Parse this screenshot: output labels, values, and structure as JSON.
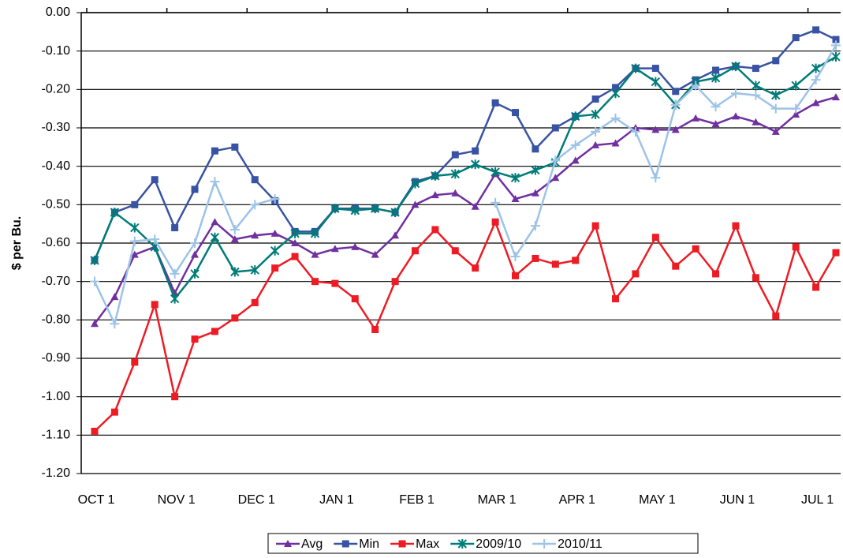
{
  "chart_data": {
    "type": "line",
    "ylabel": "$ per Bu.",
    "categories": [
      "OCT 1",
      null,
      null,
      null,
      "NOV 1",
      null,
      null,
      null,
      "DEC 1",
      null,
      null,
      null,
      "JAN 1",
      null,
      null,
      null,
      "FEB 1",
      null,
      null,
      null,
      "MAR 1",
      null,
      null,
      null,
      "APR 1",
      null,
      null,
      null,
      "MAY 1",
      null,
      null,
      null,
      "JUN 1",
      null,
      null,
      null,
      "JUL 1",
      null
    ],
    "ylim": [
      -1.2,
      0
    ],
    "yticks": [
      {
        "value": 0,
        "label": "0.00"
      },
      {
        "value": -0.1,
        "label": "-0.10"
      },
      {
        "value": -0.2,
        "label": "-0.20"
      },
      {
        "value": -0.3,
        "label": "-0.30"
      },
      {
        "value": -0.4,
        "label": "-0.40"
      },
      {
        "value": -0.5,
        "label": "-0.50"
      },
      {
        "value": -0.6,
        "label": "-0.60"
      },
      {
        "value": -0.7,
        "label": "-0.70"
      },
      {
        "value": -0.8,
        "label": "-0.80"
      },
      {
        "value": -0.9,
        "label": "-0.90"
      },
      {
        "value": -1.0,
        "label": "-1.00"
      },
      {
        "value": -1.1,
        "label": "-1.10"
      },
      {
        "value": -1.2,
        "label": "-1.20"
      }
    ],
    "grid": true,
    "legend": "bottom",
    "series": [
      {
        "name": "Avg",
        "color": "#7030a0",
        "marker": "triangle",
        "values": [
          -0.81,
          -0.74,
          -0.63,
          -0.61,
          -0.73,
          -0.63,
          -0.545,
          -0.59,
          -0.58,
          -0.575,
          -0.6,
          -0.63,
          -0.615,
          -0.61,
          -0.63,
          -0.58,
          -0.5,
          -0.475,
          -0.47,
          -0.505,
          -0.42,
          -0.485,
          -0.47,
          -0.43,
          -0.385,
          -0.345,
          -0.34,
          -0.3,
          -0.305,
          -0.305,
          -0.275,
          -0.29,
          -0.27,
          -0.285,
          -0.31,
          -0.265,
          -0.235,
          -0.22
        ]
      },
      {
        "name": "Min",
        "color": "#3953a4",
        "marker": "square",
        "values": [
          -0.645,
          -0.52,
          -0.5,
          -0.435,
          -0.56,
          -0.46,
          -0.36,
          -0.35,
          -0.435,
          -0.49,
          -0.57,
          -0.57,
          -0.51,
          -0.51,
          -0.51,
          -0.52,
          -0.44,
          -0.425,
          -0.37,
          -0.36,
          -0.235,
          -0.26,
          -0.355,
          -0.3,
          -0.27,
          -0.225,
          -0.195,
          -0.145,
          -0.145,
          -0.205,
          -0.175,
          -0.15,
          -0.14,
          -0.145,
          -0.125,
          -0.065,
          -0.045,
          -0.07
        ]
      },
      {
        "name": "Max",
        "color": "#ed1c24",
        "marker": "square",
        "values": [
          -1.09,
          -1.04,
          -0.91,
          -0.76,
          -1.0,
          -0.85,
          -0.83,
          -0.795,
          -0.755,
          -0.665,
          -0.635,
          -0.7,
          -0.705,
          -0.745,
          -0.825,
          -0.7,
          -0.62,
          -0.565,
          -0.62,
          -0.665,
          -0.545,
          -0.685,
          -0.64,
          -0.655,
          -0.645,
          -0.555,
          -0.745,
          -0.68,
          -0.585,
          -0.66,
          -0.615,
          -0.68,
          -0.555,
          -0.69,
          -0.79,
          -0.61,
          -0.715,
          -0.625
        ]
      },
      {
        "name": "2009/10",
        "color": "#007c78",
        "marker": "star",
        "values": [
          -0.645,
          -0.52,
          -0.56,
          -0.61,
          -0.745,
          -0.68,
          -0.585,
          -0.675,
          -0.67,
          -0.62,
          -0.575,
          -0.575,
          -0.51,
          -0.515,
          -0.51,
          -0.52,
          -0.445,
          -0.425,
          -0.42,
          -0.395,
          -0.415,
          -0.43,
          -0.41,
          -0.39,
          -0.27,
          -0.265,
          -0.21,
          -0.145,
          -0.18,
          -0.24,
          -0.18,
          -0.17,
          -0.14,
          -0.19,
          -0.215,
          -0.19,
          -0.145,
          -0.115
        ]
      },
      {
        "name": "2010/11",
        "color": "#9dc3e6",
        "marker": "plus",
        "values": [
          -0.7,
          -0.81,
          -0.595,
          -0.59,
          -0.68,
          -0.6,
          -0.44,
          -0.565,
          -0.5,
          -0.485,
          null,
          null,
          null,
          null,
          null,
          null,
          null,
          null,
          null,
          null,
          -0.495,
          -0.635,
          -0.555,
          -0.385,
          -0.345,
          -0.31,
          -0.275,
          -0.31,
          -0.43,
          -0.24,
          -0.19,
          -0.245,
          -0.21,
          -0.215,
          -0.25,
          -0.25,
          -0.175,
          -0.085
        ]
      }
    ]
  }
}
